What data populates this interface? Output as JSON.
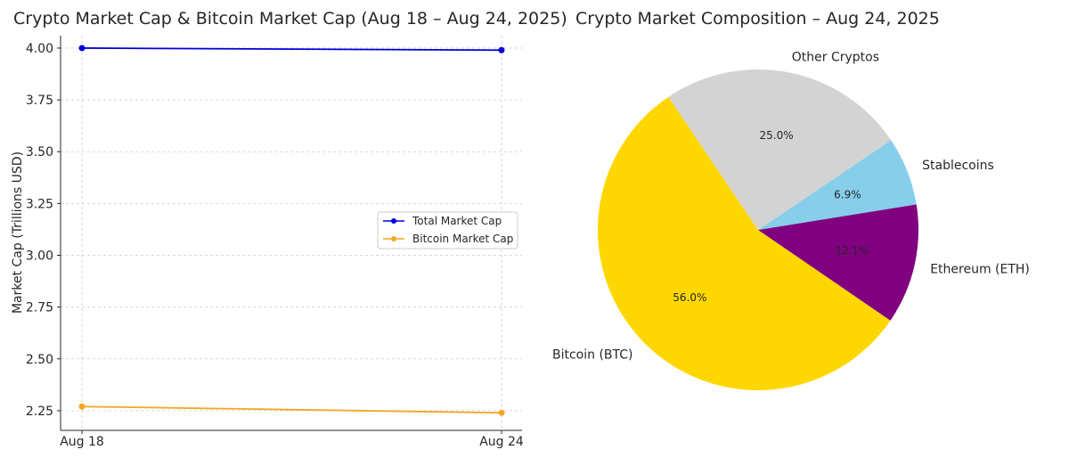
{
  "chart_data": [
    {
      "type": "line",
      "title": "Crypto Market Cap & Bitcoin Market Cap (Aug 18 – Aug 24, 2025)",
      "xlabel": "",
      "ylabel": "Market Cap (Trillions USD)",
      "categories": [
        "Aug 18",
        "Aug 24"
      ],
      "ylim": [
        2.155,
        4.06
      ],
      "yticks": [
        2.25,
        2.5,
        2.75,
        3.0,
        3.25,
        3.5,
        3.75,
        4.0
      ],
      "ytick_labels": [
        "2.25",
        "2.50",
        "2.75",
        "3.00",
        "3.25",
        "3.50",
        "3.75",
        "4.00"
      ],
      "grid": true,
      "legend_position": "center-right",
      "series": [
        {
          "name": "Total Market Cap",
          "color": "#0000d8",
          "values": [
            4.0,
            3.99
          ]
        },
        {
          "name": "Bitcoin Market Cap",
          "color": "#f5a623",
          "values": [
            2.27,
            2.24
          ]
        }
      ]
    },
    {
      "type": "pie",
      "title": "Crypto Market Composition – Aug 24, 2025",
      "slices": [
        {
          "label": "Bitcoin (BTC)",
          "value": 56.0,
          "pct_label": "56.0%",
          "color": "#ffd700"
        },
        {
          "label": "Ethereum (ETH)",
          "value": 12.1,
          "pct_label": "12.1%",
          "color": "#800080"
        },
        {
          "label": "Stablecoins",
          "value": 6.9,
          "pct_label": "6.9%",
          "color": "#87ceeb"
        },
        {
          "label": "Other Cryptos",
          "value": 25.0,
          "pct_label": "25.0%",
          "color": "#d3d3d3"
        }
      ]
    }
  ]
}
